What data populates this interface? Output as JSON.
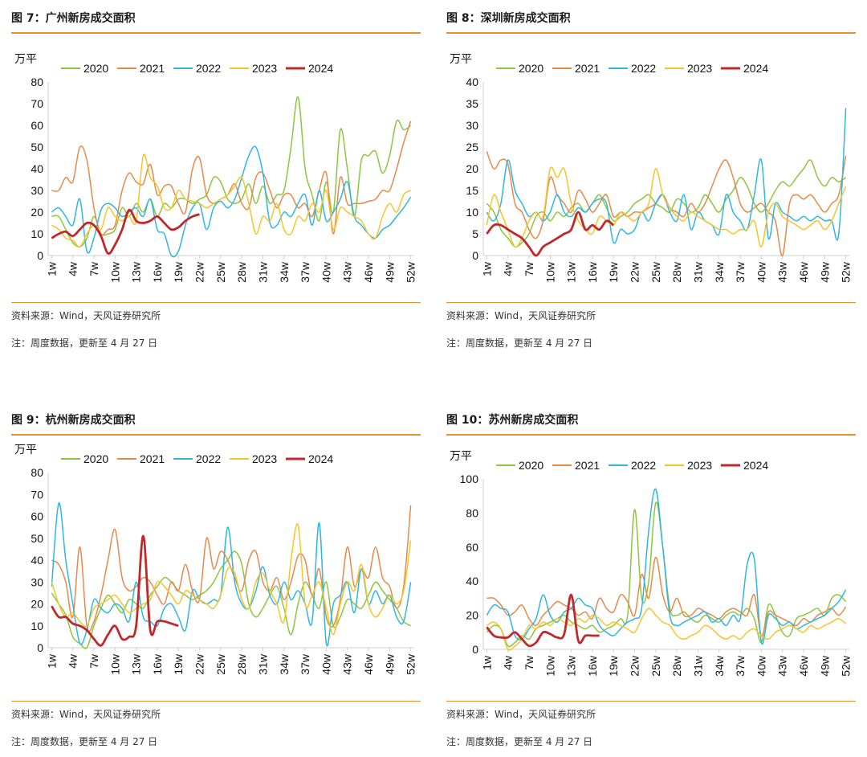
{
  "source_text": "资料来源：Wind，天风证券研究所",
  "note_text": "注：周度数据，更新至 4 月 27 日",
  "colors": {
    "2020": "#8cc63f",
    "2021": "#e8894a",
    "2022": "#2fb6e3",
    "2023": "#f7c42b",
    "2024": "#c0282c",
    "accent": "#e8902e"
  },
  "chart_data": [
    {
      "type": "line",
      "title": "图 7：广州新房成交面积",
      "unit": "万平",
      "ylim": [
        0,
        80
      ],
      "yticks": [
        0,
        10,
        20,
        30,
        40,
        50,
        60,
        70,
        80
      ],
      "xticks": [
        "1w",
        "4w",
        "7w",
        "10w",
        "13w",
        "16w",
        "19w",
        "22w",
        "25w",
        "28w",
        "31w",
        "34w",
        "37w",
        "40w",
        "43w",
        "46w",
        "49w",
        "52w"
      ],
      "grid": false,
      "legend": "top",
      "series": [
        {
          "name": "2020",
          "values": [
            18,
            18,
            12,
            6,
            4,
            8,
            18,
            10,
            10,
            12,
            22,
            18,
            24,
            20,
            26,
            18,
            24,
            22,
            26,
            26,
            24,
            26,
            28,
            36,
            34,
            26,
            24,
            26,
            33,
            24,
            32,
            24,
            28,
            30,
            50,
            73,
            40,
            28,
            16,
            34,
            20,
            58,
            40,
            18,
            44,
            46,
            48,
            38,
            46,
            62,
            58,
            60
          ]
        },
        {
          "name": "2021",
          "values": [
            30,
            30,
            36,
            34,
            50,
            44,
            22,
            10,
            12,
            14,
            30,
            38,
            34,
            33,
            42,
            28,
            32,
            32,
            24,
            20,
            40,
            45,
            28,
            24,
            26,
            28,
            33,
            24,
            22,
            36,
            38,
            30,
            22,
            28,
            28,
            22,
            24,
            18,
            30,
            38,
            10,
            36,
            24,
            24,
            24,
            25,
            26,
            30,
            30,
            40,
            52,
            62
          ]
        },
        {
          "name": "2022",
          "values": [
            20,
            22,
            18,
            14,
            26,
            2,
            8,
            21,
            24,
            22,
            18,
            20,
            22,
            18,
            26,
            12,
            10,
            0,
            2,
            14,
            22,
            24,
            12,
            22,
            25,
            22,
            26,
            36,
            46,
            50,
            38,
            15,
            14,
            20,
            18,
            24,
            28,
            14,
            30,
            16,
            20,
            26,
            34,
            18,
            14,
            10,
            8,
            12,
            14,
            18,
            22,
            27
          ]
        },
        {
          "name": "2023",
          "values": [
            14,
            12,
            8,
            7,
            4,
            10,
            14,
            12,
            22,
            18,
            16,
            18,
            16,
            46,
            36,
            32,
            22,
            22,
            30,
            26,
            25,
            24,
            22,
            24,
            26,
            28,
            32,
            36,
            24,
            10,
            18,
            16,
            24,
            12,
            10,
            18,
            16,
            24,
            20,
            30,
            12,
            22,
            20,
            18,
            16,
            10,
            8,
            18,
            24,
            20,
            28,
            30
          ]
        },
        {
          "name": "2024",
          "values": [
            8,
            10,
            11,
            9,
            12,
            15,
            14,
            9,
            1,
            5,
            12,
            21,
            16,
            15,
            16,
            18,
            15,
            12,
            13,
            16,
            18,
            19
          ]
        }
      ]
    },
    {
      "type": "line",
      "title": "图 8：深圳新房成交面积",
      "unit": "万平",
      "ylim": [
        0,
        40
      ],
      "yticks": [
        0,
        5,
        10,
        15,
        20,
        25,
        30,
        35,
        40
      ],
      "xticks": [
        "1w",
        "4w",
        "7w",
        "10w",
        "13w",
        "16w",
        "19w",
        "22w",
        "25w",
        "28w",
        "31w",
        "34w",
        "37w",
        "40w",
        "43w",
        "46w",
        "49w",
        "52w"
      ],
      "grid": false,
      "legend": "top",
      "series": [
        {
          "name": "2020",
          "values": [
            12,
            10,
            6,
            4,
            2,
            3,
            5,
            9,
            10,
            8,
            10,
            9,
            11,
            12,
            10,
            12,
            14,
            11,
            8,
            9,
            10,
            12,
            13,
            14,
            12,
            11,
            10,
            13,
            12,
            10,
            11,
            14,
            12,
            10,
            13,
            15,
            18,
            16,
            12,
            10,
            12,
            15,
            17,
            16,
            18,
            20,
            22,
            18,
            16,
            18,
            17,
            18
          ]
        },
        {
          "name": "2021",
          "values": [
            24,
            20,
            22,
            21,
            12,
            10,
            6,
            4,
            8,
            18,
            14,
            12,
            10,
            15,
            13,
            10,
            12,
            14,
            9,
            10,
            9,
            10,
            10,
            11,
            12,
            14,
            11,
            10,
            9,
            12,
            10,
            12,
            16,
            20,
            22,
            18,
            12,
            10,
            11,
            12,
            10,
            8,
            0,
            12,
            14,
            13,
            14,
            12,
            10,
            12,
            14,
            23
          ]
        },
        {
          "name": "2022",
          "values": [
            10,
            8,
            12,
            22,
            15,
            12,
            9,
            10,
            8,
            10,
            14,
            10,
            9,
            11,
            10,
            12,
            13,
            12,
            3,
            6,
            5,
            6,
            10,
            8,
            12,
            14,
            10,
            8,
            14,
            6,
            10,
            8,
            7,
            5,
            14,
            10,
            8,
            6,
            14,
            22,
            4,
            12,
            10,
            9,
            8,
            9,
            8,
            9,
            8,
            8,
            5,
            34
          ]
        },
        {
          "name": "2023",
          "values": [
            7,
            14,
            10,
            6,
            2,
            4,
            8,
            10,
            9,
            20,
            18,
            20,
            12,
            8,
            6,
            5,
            9,
            8,
            7,
            10,
            9,
            8,
            10,
            12,
            20,
            14,
            11,
            9,
            8,
            10,
            9,
            8,
            7,
            6,
            6,
            5,
            6,
            6,
            8,
            2,
            10,
            12,
            9,
            8,
            7,
            6,
            7,
            8,
            6,
            8,
            12,
            16
          ]
        },
        {
          "name": "2024",
          "values": [
            5,
            7,
            7,
            6,
            5,
            4,
            2,
            0,
            2,
            3,
            4,
            5,
            6,
            10,
            6,
            7,
            6,
            8,
            7
          ]
        }
      ]
    },
    {
      "type": "line",
      "title": "图 9：杭州新房成交面积",
      "unit": "万平",
      "ylim": [
        0,
        80
      ],
      "yticks": [
        0,
        10,
        20,
        30,
        40,
        50,
        60,
        70,
        80
      ],
      "xticks": [
        "1w",
        "4w",
        "7w",
        "10w",
        "13w",
        "16w",
        "19w",
        "22w",
        "25w",
        "28w",
        "31w",
        "34w",
        "37w",
        "40w",
        "43w",
        "46w",
        "49w",
        "52w"
      ],
      "grid": false,
      "legend": "top",
      "series": [
        {
          "name": "2020",
          "values": [
            25,
            20,
            15,
            5,
            2,
            0,
            10,
            18,
            24,
            20,
            16,
            22,
            20,
            18,
            24,
            28,
            32,
            30,
            26,
            24,
            22,
            24,
            26,
            30,
            36,
            40,
            44,
            38,
            20,
            14,
            18,
            24,
            28,
            18,
            6,
            20,
            30,
            24,
            18,
            30,
            10,
            14,
            22,
            20,
            18,
            24,
            30,
            26,
            22,
            18,
            12,
            10
          ]
        },
        {
          "name": "2021",
          "values": [
            40,
            38,
            30,
            14,
            46,
            10,
            12,
            24,
            40,
            54,
            32,
            26,
            28,
            32,
            30,
            24,
            20,
            30,
            26,
            38,
            26,
            22,
            50,
            36,
            44,
            40,
            32,
            26,
            40,
            44,
            30,
            26,
            32,
            22,
            30,
            42,
            40,
            24,
            36,
            14,
            10,
            22,
            46,
            28,
            36,
            32,
            46,
            32,
            28,
            18,
            28,
            65
          ]
        },
        {
          "name": "2022",
          "values": [
            28,
            66,
            40,
            20,
            2,
            8,
            22,
            18,
            16,
            20,
            18,
            12,
            30,
            14,
            12,
            10,
            18,
            20,
            14,
            8,
            26,
            22,
            20,
            22,
            24,
            55,
            30,
            20,
            18,
            26,
            37,
            24,
            20,
            30,
            22,
            26,
            20,
            12,
            57,
            2,
            20,
            24,
            30,
            16,
            36,
            20,
            26,
            20,
            24,
            14,
            12,
            30
          ]
        },
        {
          "name": "2023",
          "values": [
            30,
            20,
            14,
            16,
            12,
            10,
            18,
            20,
            22,
            24,
            20,
            16,
            18,
            20,
            22,
            30,
            28,
            24,
            20,
            26,
            24,
            22,
            20,
            18,
            24,
            36,
            34,
            22,
            18,
            30,
            34,
            26,
            20,
            12,
            40,
            56,
            20,
            24,
            30,
            18,
            6,
            20,
            30,
            26,
            38,
            20,
            14,
            18,
            24,
            20,
            26,
            49
          ]
        },
        {
          "name": "2024",
          "values": [
            19,
            14,
            14,
            11,
            10,
            8,
            4,
            1,
            6,
            10,
            4,
            5,
            10,
            51,
            8,
            12,
            12,
            11,
            10
          ]
        }
      ]
    },
    {
      "type": "line",
      "title": "图 10：苏州新房成交面积",
      "unit": "万平",
      "ylim": [
        0,
        100
      ],
      "yticks": [
        0,
        20,
        40,
        60,
        80,
        100
      ],
      "xticks": [
        "1w",
        "4w",
        "7w",
        "10w",
        "13w",
        "16w",
        "19w",
        "22w",
        "25w",
        "28w",
        "31w",
        "34w",
        "37w",
        "40w",
        "43w",
        "46w",
        "49w",
        "52w"
      ],
      "grid": false,
      "legend": "top",
      "series": [
        {
          "name": "2020",
          "values": [
            10,
            14,
            12,
            2,
            4,
            8,
            6,
            12,
            14,
            16,
            18,
            20,
            16,
            14,
            12,
            14,
            10,
            12,
            14,
            18,
            20,
            82,
            30,
            40,
            86,
            60,
            24,
            20,
            22,
            18,
            16,
            20,
            18,
            16,
            20,
            22,
            20,
            24,
            18,
            4,
            26,
            20,
            10,
            8,
            18,
            20,
            22,
            24,
            20,
            30,
            32,
            28
          ]
        },
        {
          "name": "2021",
          "values": [
            30,
            30,
            26,
            20,
            22,
            26,
            18,
            14,
            20,
            24,
            28,
            26,
            24,
            20,
            22,
            18,
            30,
            24,
            22,
            32,
            28,
            20,
            44,
            30,
            54,
            32,
            22,
            30,
            20,
            20,
            24,
            22,
            20,
            18,
            22,
            24,
            22,
            20,
            32,
            8,
            22,
            20,
            18,
            16,
            14,
            18,
            16,
            20,
            22,
            24,
            20,
            25
          ]
        },
        {
          "name": "2022",
          "values": [
            20,
            26,
            24,
            22,
            8,
            6,
            12,
            18,
            32,
            20,
            16,
            22,
            24,
            30,
            26,
            24,
            14,
            10,
            8,
            12,
            16,
            18,
            24,
            70,
            94,
            60,
            20,
            14,
            16,
            18,
            20,
            22,
            16,
            18,
            14,
            20,
            18,
            50,
            53,
            4,
            20,
            18,
            14,
            16,
            12,
            14,
            16,
            18,
            20,
            24,
            28,
            35
          ]
        },
        {
          "name": "2023",
          "values": [
            14,
            16,
            12,
            0,
            2,
            6,
            14,
            12,
            16,
            14,
            18,
            16,
            14,
            18,
            16,
            20,
            18,
            14,
            16,
            14,
            12,
            10,
            18,
            24,
            20,
            16,
            14,
            8,
            6,
            8,
            10,
            14,
            12,
            8,
            6,
            8,
            6,
            10,
            12,
            8,
            6,
            10,
            12,
            14,
            12,
            10,
            14,
            12,
            14,
            16,
            18,
            15
          ]
        },
        {
          "name": "2024",
          "values": [
            13,
            8,
            7,
            7,
            10,
            6,
            2,
            4,
            10,
            9,
            7,
            9,
            32,
            5,
            8,
            8,
            8
          ]
        }
      ]
    }
  ]
}
